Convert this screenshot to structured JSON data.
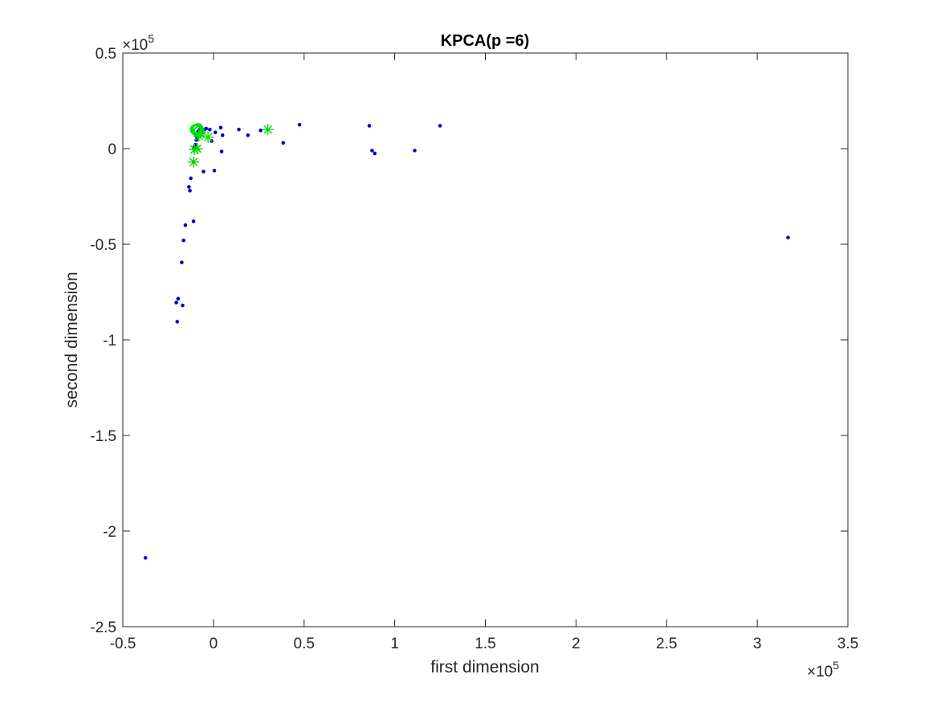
{
  "chart_data": {
    "type": "scatter",
    "title": "KPCA(p =6)",
    "xlabel": "first dimension",
    "ylabel": "second dimension",
    "xlim": [
      -0.5,
      3.5
    ],
    "ylim": [
      -2.5,
      0.5
    ],
    "x_exponent": "×10",
    "x_exponent_power": "5",
    "y_exponent": "×10",
    "y_exponent_power": "5",
    "x_ticks": [
      -0.5,
      0,
      0.5,
      1,
      1.5,
      2,
      2.5,
      3,
      3.5
    ],
    "x_tick_labels": [
      "-0.5",
      "0",
      "0.5",
      "1",
      "1.5",
      "2",
      "2.5",
      "3",
      "3.5"
    ],
    "y_ticks": [
      0.5,
      0,
      -0.5,
      -1,
      -1.5,
      -2,
      -2.5
    ],
    "y_tick_labels": [
      "0.5",
      "0",
      "-0.5",
      "-1",
      "-1.5",
      "-2",
      "-2.5"
    ],
    "grid": false,
    "series": [
      {
        "marker": "dot",
        "color": "#0000cc",
        "points": [
          [
            -0.375,
            -2.14
          ],
          [
            -0.205,
            -0.805
          ],
          [
            -0.195,
            -0.785
          ],
          [
            -0.2,
            -0.905
          ],
          [
            -0.17,
            -0.82
          ],
          [
            -0.175,
            -0.595
          ],
          [
            -0.165,
            -0.48
          ],
          [
            -0.155,
            -0.4
          ],
          [
            -0.135,
            -0.2
          ],
          [
            -0.13,
            -0.22
          ],
          [
            -0.125,
            -0.155
          ],
          [
            -0.11,
            -0.38
          ],
          [
            -0.11,
            -0.07
          ],
          [
            -0.1,
            0.02
          ],
          [
            -0.105,
            0.01
          ],
          [
            -0.095,
            0.045
          ],
          [
            -0.09,
            0.06
          ],
          [
            -0.085,
            0.09
          ],
          [
            -0.075,
            0.1
          ],
          [
            -0.07,
            0.085
          ],
          [
            -0.06,
            0.095
          ],
          [
            -0.05,
            0.1
          ],
          [
            -0.04,
            0.105
          ],
          [
            -0.055,
            -0.12
          ],
          [
            -0.02,
            0.1
          ],
          [
            -0.01,
            0.04
          ],
          [
            0.005,
            -0.115
          ],
          [
            0.01,
            0.085
          ],
          [
            0.04,
            0.11
          ],
          [
            0.05,
            0.07
          ],
          [
            0.045,
            -0.015
          ],
          [
            0.14,
            0.1
          ],
          [
            0.19,
            0.07
          ],
          [
            0.26,
            0.095
          ],
          [
            0.385,
            0.03
          ],
          [
            0.475,
            0.125
          ],
          [
            0.86,
            0.12
          ],
          [
            0.875,
            -0.01
          ],
          [
            0.89,
            -0.025
          ],
          [
            1.11,
            -0.01
          ],
          [
            1.25,
            0.12
          ],
          [
            3.17,
            -0.465
          ]
        ]
      },
      {
        "marker": "star",
        "color": "#00dd00",
        "points": [
          [
            -0.11,
            -0.07
          ],
          [
            -0.105,
            -0.005
          ],
          [
            -0.09,
            0.0
          ],
          [
            -0.08,
            0.065
          ],
          [
            -0.07,
            0.085
          ],
          [
            -0.03,
            0.06
          ],
          [
            0.3,
            0.1
          ]
        ]
      },
      {
        "marker": "circle",
        "color": "#00dd00",
        "points": [
          [
            -0.095,
            0.095
          ],
          [
            -0.09,
            0.1
          ],
          [
            -0.085,
            0.105
          ],
          [
            -0.1,
            0.1
          ],
          [
            -0.08,
            0.09
          ]
        ]
      }
    ]
  }
}
